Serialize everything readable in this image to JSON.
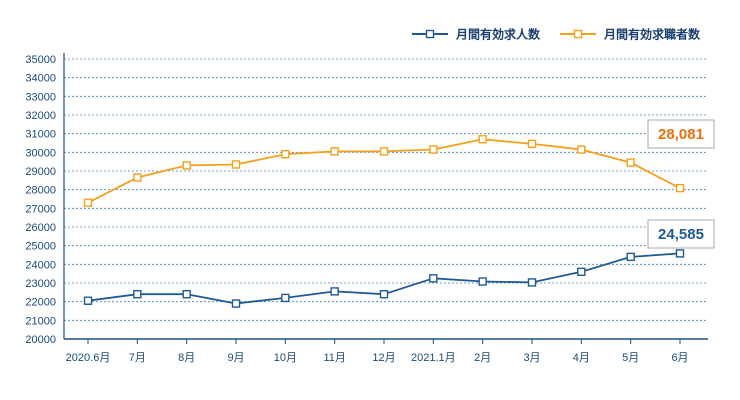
{
  "chart_data": {
    "type": "line",
    "title": "",
    "xlabel": "",
    "ylabel": "",
    "categories": [
      "2020.6月",
      "7月",
      "8月",
      "9月",
      "10月",
      "11月",
      "12月",
      "2021.1月",
      "2月",
      "3月",
      "4月",
      "5月",
      "6月"
    ],
    "ylim": [
      20000,
      35000
    ],
    "yticks": [
      20000,
      21000,
      22000,
      23000,
      24000,
      25000,
      26000,
      27000,
      28000,
      29000,
      30000,
      31000,
      32000,
      33000,
      34000,
      35000
    ],
    "grid": true,
    "legend_position": "top-right",
    "series": [
      {
        "name": "月間有効求人数",
        "color": "#1f5a94",
        "values": [
          22050,
          22400,
          22400,
          21900,
          22200,
          22550,
          22400,
          23250,
          23080,
          23030,
          23600,
          24400,
          24585
        ]
      },
      {
        "name": "月間有効求職者数",
        "color": "#f5a01a",
        "values": [
          27300,
          28650,
          29300,
          29350,
          29900,
          30050,
          30050,
          30150,
          30700,
          30450,
          30150,
          29450,
          28081
        ]
      }
    ],
    "annotations": [
      {
        "series": 1,
        "text": "28,081",
        "color": "#f07010"
      },
      {
        "series": 0,
        "text": "24,585",
        "color": "#1f5a94"
      }
    ]
  }
}
